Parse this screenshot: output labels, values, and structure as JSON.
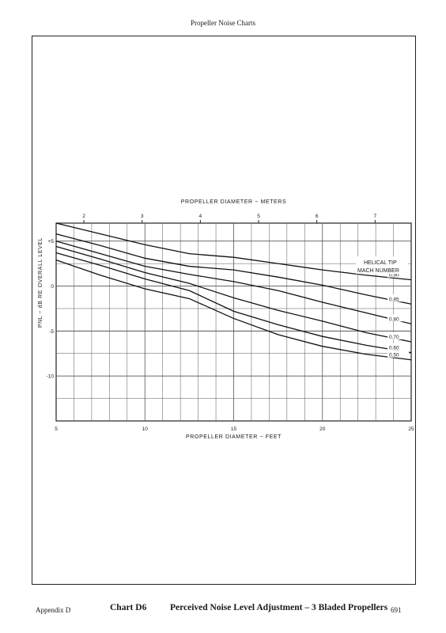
{
  "header": {
    "title": "Propeller Noise Charts"
  },
  "footer": {
    "left": "Appendix D",
    "page_number": "691"
  },
  "caption": {
    "id": "Chart D6",
    "text": "Perceived Noise Level Adjustment – 3 Bladed Propellers"
  },
  "chart_data": {
    "type": "line",
    "title": "",
    "xlabel": "PROPELLER DIAMETER ~ FEET",
    "x2label": "PROPELLER DIAMETER ~ METERS",
    "ylabel": "PNL ~ dB RE OVERALL LEVEL",
    "xlim": [
      5,
      25
    ],
    "ylim": [
      -15,
      7
    ],
    "x_ticks": [
      5,
      10,
      15,
      20,
      25
    ],
    "x_tick_labels": [
      "5",
      "10",
      "15",
      "20",
      "25"
    ],
    "x2_ticks_m": [
      2,
      3,
      4,
      5,
      6,
      7
    ],
    "x2_tick_labels": [
      "2",
      "3",
      "4",
      "5",
      "6",
      "7"
    ],
    "y_ticks": [
      5,
      0,
      -5,
      -10
    ],
    "y_tick_labels": [
      "+5",
      "0",
      "-5",
      "-10"
    ],
    "grid": true,
    "legend_title": "HELICAL TIP MACH NUMBER",
    "legend_title_lines": [
      "HELICAL TIP",
      "MACH NUMBER"
    ],
    "series": [
      {
        "name": "0.90",
        "x": [
          5,
          7.5,
          10,
          12.5,
          15,
          17.5,
          20,
          22.5,
          25
        ],
        "y": [
          7,
          5.8,
          4.6,
          3.6,
          3.2,
          2.5,
          1.8,
          1.2,
          0.7
        ]
      },
      {
        "name": "0.85",
        "x": [
          5,
          7.5,
          10,
          12.5,
          15,
          17.5,
          20,
          22.5,
          25
        ],
        "y": [
          5.8,
          4.5,
          3.1,
          2.2,
          1.8,
          1.0,
          0.1,
          -1.0,
          -2.0
        ]
      },
      {
        "name": "0.80",
        "x": [
          5,
          7.5,
          10,
          12.5,
          15,
          17.5,
          20,
          22.5,
          25
        ],
        "y": [
          5.0,
          3.6,
          2.2,
          1.3,
          0.5,
          -0.5,
          -1.8,
          -3.0,
          -4.2
        ]
      },
      {
        "name": "0.70",
        "x": [
          5,
          7.5,
          10,
          12.5,
          15,
          17.5,
          20,
          22.5,
          25
        ],
        "y": [
          4.4,
          3.0,
          1.5,
          0.3,
          -1.3,
          -2.7,
          -3.9,
          -5.2,
          -6.2
        ]
      },
      {
        "name": "0.60",
        "x": [
          5,
          7.5,
          10,
          12.5,
          15,
          17.5,
          20,
          22.5,
          25
        ],
        "y": [
          3.7,
          2.3,
          0.8,
          -0.5,
          -2.8,
          -4.3,
          -5.6,
          -6.6,
          -7.4
        ]
      },
      {
        "name": "0.50",
        "x": [
          5,
          7.5,
          10,
          12.5,
          15,
          17.5,
          20,
          22.5,
          25
        ],
        "y": [
          2.9,
          1.2,
          -0.3,
          -1.4,
          -3.6,
          -5.4,
          -6.7,
          -7.6,
          -8.2
        ]
      }
    ]
  }
}
